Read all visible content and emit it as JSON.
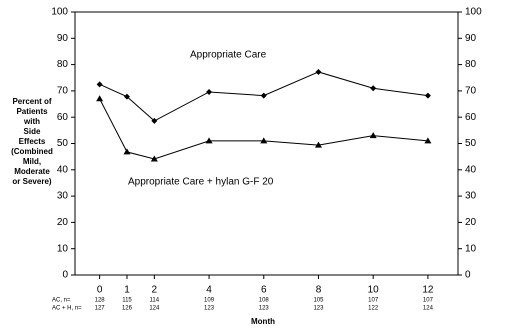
{
  "chart_data": {
    "type": "line",
    "ylabel": [
      "Percent of",
      "Patients",
      "with",
      "Side",
      "Effects",
      "(Combined",
      "Mild,",
      "Moderate",
      "or Severe)"
    ],
    "xlabel": "Month",
    "x": [
      0,
      1,
      2,
      4,
      6,
      8,
      10,
      12
    ],
    "series": [
      {
        "name": "Appropriate Care",
        "color": "#000000",
        "marker": "diamond",
        "values": [
          72.5,
          67.8,
          58.6,
          69.6,
          68.2,
          77.2,
          71,
          68.2
        ]
      },
      {
        "name": "Appropriate Care + hylan G-F 20",
        "color": "#000000",
        "marker": "triangle",
        "values": [
          67,
          46.8,
          44.1,
          51,
          51,
          49.4,
          53,
          51
        ]
      }
    ],
    "xlim": [
      -0.9,
      13.1
    ],
    "ylim": [
      0,
      100
    ],
    "yticks": [
      0,
      10,
      20,
      30,
      40,
      50,
      60,
      70,
      80,
      90,
      100
    ],
    "y2lim": [
      0,
      100
    ],
    "y2ticks": [
      0,
      10,
      20,
      30,
      40,
      50,
      60,
      70,
      80,
      90,
      100
    ],
    "n_rows": [
      {
        "label": "AC, n=",
        "values": [
          128,
          115,
          114,
          109,
          108,
          105,
          107,
          107
        ]
      },
      {
        "label": "AC + H, n=",
        "values": [
          127,
          126,
          124,
          123,
          123,
          123,
          122,
          124
        ]
      }
    ]
  }
}
